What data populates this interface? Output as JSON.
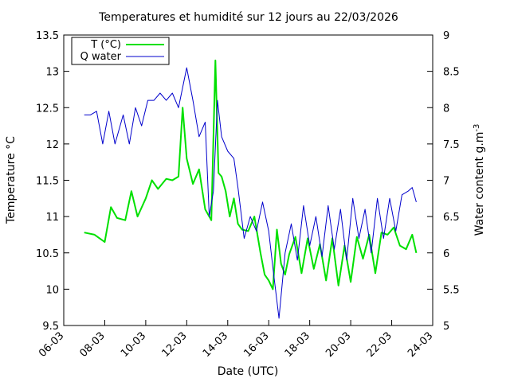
{
  "chart_data": {
    "type": "line",
    "title": "Temperatures et humidité sur 12 jours au 22/03/2026",
    "xlabel": "Date (UTC)",
    "ylabel": "Temperature °C",
    "y2label": "Water content g.m",
    "y2label_sup": "-3",
    "x_ticks": [
      "06-03",
      "08-03",
      "10-03",
      "12-03",
      "14-03",
      "16-03",
      "18-03",
      "20-03",
      "22-03",
      "24-03"
    ],
    "xlim_days": [
      6,
      24
    ],
    "ylim": [
      9.5,
      13.5
    ],
    "y_ticks": [
      "9.5",
      "10",
      "10.5",
      "11",
      "11.5",
      "12",
      "12.5",
      "13",
      "13.5"
    ],
    "y2lim": [
      5,
      9
    ],
    "y2_ticks": [
      "5",
      "5.5",
      "6",
      "6.5",
      "7",
      "7.5",
      "8",
      "8.5",
      "9"
    ],
    "grid": false,
    "legend_position": "top-left",
    "series": [
      {
        "name": "T (°C)",
        "axis": "left",
        "color": "#00e000",
        "x": [
          7.0,
          7.5,
          8.0,
          8.3,
          8.6,
          9.0,
          9.3,
          9.6,
          10.0,
          10.3,
          10.6,
          11.0,
          11.3,
          11.6,
          11.8,
          12.0,
          12.3,
          12.6,
          12.9,
          13.2,
          13.4,
          13.55,
          13.7,
          13.9,
          14.1,
          14.3,
          14.5,
          14.7,
          15.0,
          15.3,
          15.6,
          15.8,
          16.0,
          16.2,
          16.4,
          16.6,
          16.8,
          17.0,
          17.3,
          17.6,
          17.9,
          18.2,
          18.5,
          18.8,
          19.1,
          19.4,
          19.7,
          20.0,
          20.3,
          20.6,
          20.9,
          21.2,
          21.5,
          21.8,
          22.1,
          22.4,
          22.7,
          23.0,
          23.2
        ],
        "values": [
          10.78,
          10.75,
          10.65,
          11.13,
          10.98,
          10.95,
          11.35,
          11.0,
          11.25,
          11.5,
          11.38,
          11.52,
          11.5,
          11.55,
          12.5,
          11.8,
          11.45,
          11.65,
          11.1,
          10.95,
          13.15,
          11.6,
          11.55,
          11.35,
          11.0,
          11.25,
          10.9,
          10.82,
          10.8,
          11.0,
          10.5,
          10.2,
          10.12,
          10.0,
          10.82,
          10.35,
          10.2,
          10.48,
          10.72,
          10.22,
          10.7,
          10.28,
          10.62,
          10.12,
          10.7,
          10.05,
          10.6,
          10.1,
          10.72,
          10.42,
          10.75,
          10.22,
          10.78,
          10.75,
          10.85,
          10.6,
          10.55,
          10.75,
          10.5
        ]
      },
      {
        "name": "Q water",
        "axis": "right",
        "color": "#0000cc",
        "x": [
          7.0,
          7.3,
          7.6,
          7.9,
          8.2,
          8.5,
          8.9,
          9.2,
          9.5,
          9.8,
          10.1,
          10.4,
          10.7,
          11.0,
          11.3,
          11.6,
          12.0,
          12.3,
          12.6,
          12.9,
          13.1,
          13.3,
          13.5,
          13.7,
          14.0,
          14.3,
          14.5,
          14.8,
          15.1,
          15.4,
          15.7,
          16.0,
          16.2,
          16.5,
          16.8,
          17.1,
          17.4,
          17.7,
          18.0,
          18.3,
          18.6,
          18.9,
          19.2,
          19.5,
          19.8,
          20.1,
          20.4,
          20.7,
          21.0,
          21.3,
          21.6,
          21.9,
          22.2,
          22.5,
          22.8,
          23.0,
          23.2
        ],
        "values": [
          7.9,
          7.9,
          7.95,
          7.5,
          7.95,
          7.5,
          7.9,
          7.5,
          8.0,
          7.75,
          8.1,
          8.1,
          8.2,
          8.1,
          8.2,
          8.0,
          8.55,
          8.1,
          7.6,
          7.8,
          6.5,
          6.85,
          8.1,
          7.6,
          7.4,
          7.3,
          6.9,
          6.2,
          6.5,
          6.3,
          6.7,
          6.3,
          5.8,
          5.1,
          6.0,
          6.4,
          5.9,
          6.65,
          6.1,
          6.5,
          5.95,
          6.65,
          6.05,
          6.6,
          5.9,
          6.75,
          6.2,
          6.6,
          6.0,
          6.75,
          6.2,
          6.75,
          6.3,
          6.8,
          6.85,
          6.9,
          6.7
        ]
      }
    ]
  }
}
